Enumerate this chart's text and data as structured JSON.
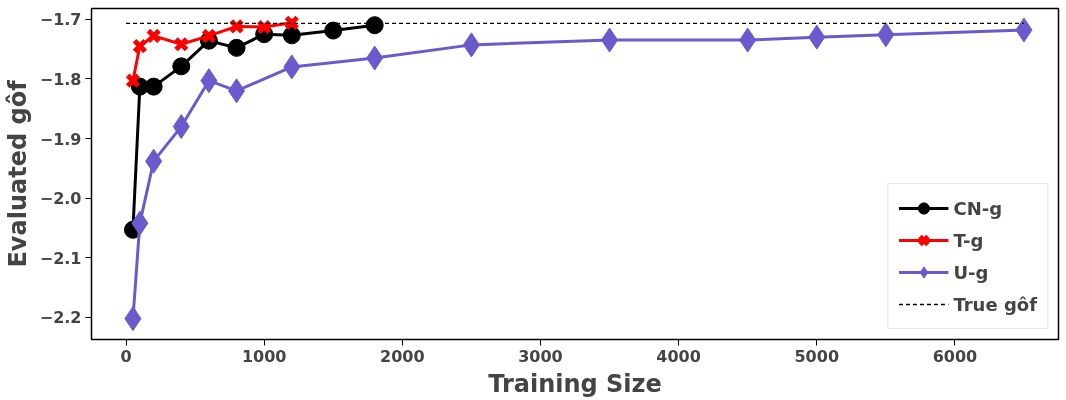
{
  "chart_data": {
    "type": "line",
    "xlabel": "Training Size",
    "ylabel": "Evaluated gôf",
    "xlim": [
      -250,
      6750
    ],
    "ylim": [
      -2.237,
      -1.682
    ],
    "xticks": [
      0,
      1000,
      2000,
      3000,
      4000,
      5000,
      6000
    ],
    "yticks": [
      {
        "value": -2.2,
        "label": "−2.2"
      },
      {
        "value": -2.1,
        "label": "−2.1"
      },
      {
        "value": -2.0,
        "label": "−2.0"
      },
      {
        "value": -1.9,
        "label": "−1.9"
      },
      {
        "value": -1.8,
        "label": "−1.8"
      },
      {
        "value": -1.7,
        "label": "−1.7"
      }
    ],
    "grid": false,
    "legend": "bottom right",
    "series": [
      {
        "name": "CN-g",
        "color": "#000000",
        "marker": "circle",
        "line_style": "solid",
        "x": [
          50,
          100,
          200,
          400,
          600,
          800,
          1000,
          1200,
          1500,
          1800
        ],
        "values": [
          -2.053,
          -1.813,
          -1.813,
          -1.779,
          -1.736,
          -1.748,
          -1.725,
          -1.727,
          -1.719,
          -1.71
        ]
      },
      {
        "name": "T-g",
        "color": "#ff0000",
        "marker": "cross",
        "line_style": "solid",
        "x": [
          50,
          100,
          200,
          400,
          600,
          800,
          1000,
          1200
        ],
        "values": [
          -1.803,
          -1.745,
          -1.728,
          -1.742,
          -1.728,
          -1.712,
          -1.713,
          -1.706
        ]
      },
      {
        "name": "U-g",
        "color": "#6a5acd",
        "marker": "diamond",
        "line_style": "solid",
        "x": [
          50,
          100,
          200,
          400,
          600,
          800,
          1200,
          1800,
          2500,
          3500,
          4500,
          5000,
          5500,
          6500
        ],
        "values": [
          -2.202,
          -2.042,
          -1.938,
          -1.88,
          -1.803,
          -1.82,
          -1.78,
          -1.765,
          -1.743,
          -1.735,
          -1.735,
          -1.73,
          -1.726,
          -1.718
        ]
      },
      {
        "name": "True gôf",
        "color": "#000000",
        "marker": "none",
        "line_style": "dashed",
        "x": [
          0,
          6500
        ],
        "values": [
          -1.707,
          -1.707
        ]
      }
    ]
  }
}
